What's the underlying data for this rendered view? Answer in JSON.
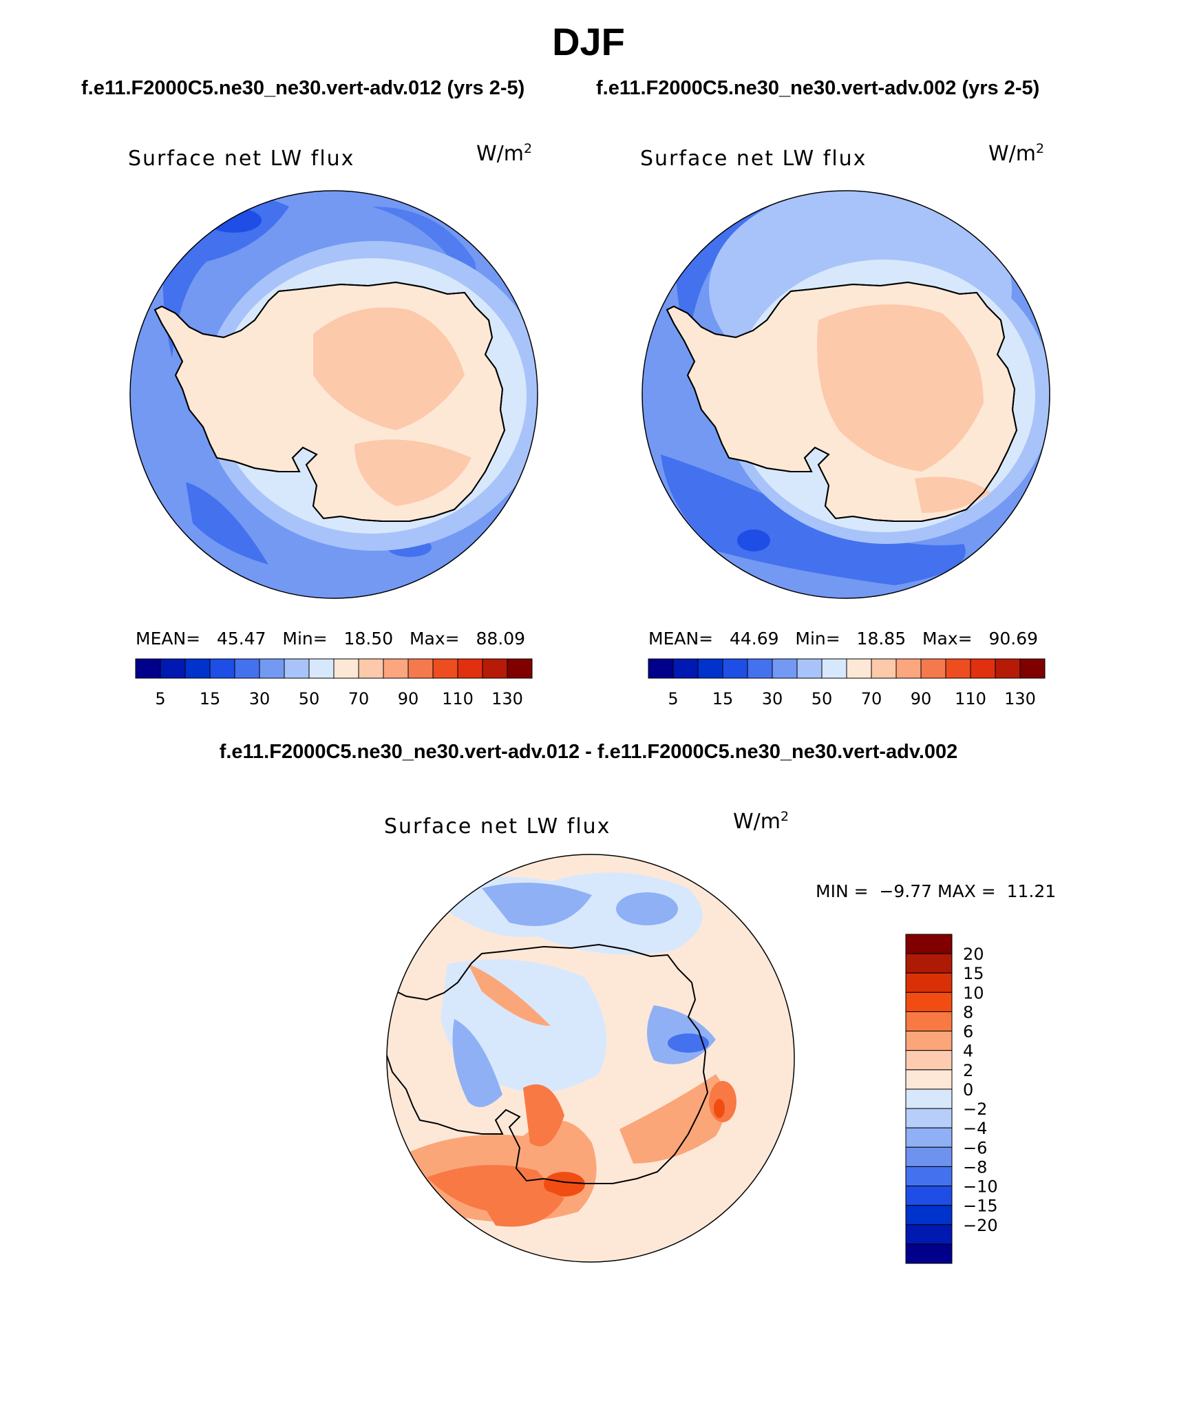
{
  "figure": {
    "season": "DJF",
    "run_a": "f.e11.F2000C5.ne30_ne30.vert-adv.012 (yrs 2-5)",
    "run_b": "f.e11.F2000C5.ne30_ne30.vert-adv.002 (yrs 2-5)",
    "diff_title": "f.e11.F2000C5.ne30_ne30.vert-adv.012 - f.e11.F2000C5.ne30_ne30.vert-adv.002"
  },
  "panels": [
    {
      "variable": "Surface net LW flux",
      "units_base": "W/m",
      "units_exp": "2",
      "mean_label": "MEAN=",
      "mean": "45.47",
      "min_label": "Min=",
      "min": "18.50",
      "max_label": "Max=",
      "max": "88.09"
    },
    {
      "variable": "Surface net LW flux",
      "units_base": "W/m",
      "units_exp": "2",
      "mean_label": "MEAN=",
      "mean": "44.69",
      "min_label": "Min=",
      "min": "18.85",
      "max_label": "Max=",
      "max": "90.69"
    }
  ],
  "diff_panel": {
    "variable": "Surface net LW flux",
    "units_base": "W/m",
    "units_exp": "2",
    "min_label": "MIN =",
    "min": "−9.77",
    "max_label": "MAX =",
    "max": "11.21"
  },
  "colorbar_main": {
    "colors": [
      "#00008b",
      "#0019b2",
      "#0033cc",
      "#1f4ee6",
      "#4471ee",
      "#7399f3",
      "#a8c3f9",
      "#d8e8fc",
      "#fde8d6",
      "#fdc9ab",
      "#fba67f",
      "#f47a4d",
      "#ee4d1f",
      "#e03010",
      "#b51b06",
      "#800000"
    ],
    "tick_labels": [
      "5",
      "15",
      "30",
      "50",
      "70",
      "90",
      "110",
      "130"
    ]
  },
  "colorbar_diff": {
    "colors": [
      "#800000",
      "#ad1a05",
      "#da3008",
      "#f14d13",
      "#f87944",
      "#fba679",
      "#fdccb0",
      "#fde8d8",
      "#d8e8fc",
      "#b6cef9",
      "#8fb0f4",
      "#6d93ef",
      "#4471ee",
      "#1f4ee6",
      "#0033cc",
      "#0019b2",
      "#00008b"
    ],
    "tick_labels": [
      "20",
      "15",
      "10",
      "8",
      "6",
      "4",
      "2",
      "0",
      "−2",
      "−4",
      "−6",
      "−8",
      "−10",
      "−15",
      "−20"
    ]
  },
  "colors": {
    "ocean_mid": "#7399f3",
    "ocean_dark": "#4471ee",
    "ocean_light": "#a8c3f9",
    "coast_pale": "#d8e8fc",
    "land": "#fdc9ab",
    "land_light": "#fde8d6",
    "diff_pos_light": "#fde8d8",
    "diff_neg_light": "#d8e8fc",
    "diff_pos_mid": "#fba679",
    "diff_pos_strong": "#f87944",
    "diff_neg_mid": "#8fb0f4",
    "diff_neg_strong": "#4471ee"
  }
}
